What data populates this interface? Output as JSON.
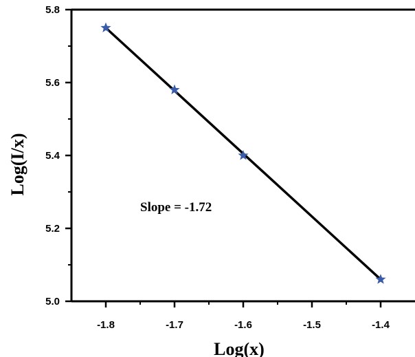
{
  "chart_data": {
    "type": "scatter",
    "xlabel": "Log(x)",
    "ylabel": "Log(I/x)",
    "xlim": [
      -1.85,
      -1.35
    ],
    "ylim": [
      5.0,
      5.8
    ],
    "x_ticks": [
      "-1.8",
      "-1.7",
      "-1.6",
      "-1.5",
      "-1.4"
    ],
    "y_ticks": [
      "5.0",
      "5.2",
      "5.4",
      "5.6",
      "5.8"
    ],
    "annotation": "Slope = -1.72",
    "grid": false,
    "marker": "star",
    "marker_color": "#3a5ba8",
    "line_color": "#000000",
    "series": [
      {
        "x": [
          -1.8,
          -1.7,
          -1.6,
          -1.4
        ],
        "y": [
          5.75,
          5.58,
          5.4,
          5.06
        ]
      }
    ],
    "fit_line": {
      "x": [
        -1.8,
        -1.4
      ],
      "y": [
        5.75,
        5.06
      ]
    }
  }
}
